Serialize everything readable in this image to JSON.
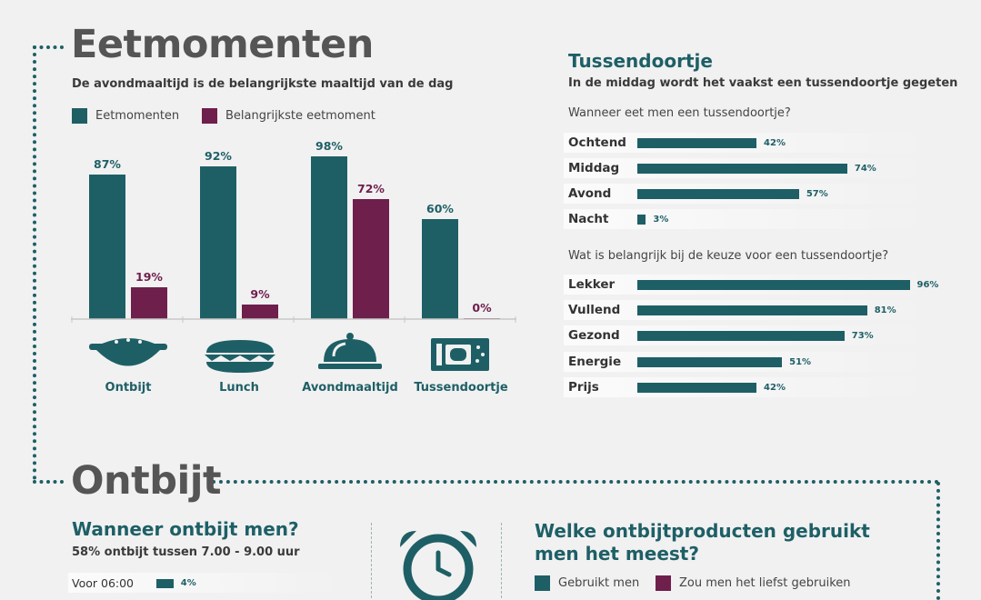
{
  "colors": {
    "teal": "#1e5f66",
    "maroon": "#6e1f4c",
    "dots": "#1e5f66"
  },
  "eetmomenten": {
    "title": "Eetmomenten",
    "subtitle": "De avondmaaltijd is de belangrijkste maaltijd van de dag",
    "legend": [
      "Eetmomenten",
      "Belangrijkste eetmoment"
    ]
  },
  "tussendoortje": {
    "title": "Tussendoortje",
    "subtitle": "In de middag wordt het vaakst een tussendoortje gegeten",
    "q1": "Wanneer eet men een tussendoortje?",
    "q2": "Wat is belangrijk bij de keuze voor een tussendoortje?"
  },
  "ontbijt": {
    "title": "Ontbijt",
    "when_title": "Wanneer ontbijt men?",
    "when_subtitle": "58% ontbijt tussen 7.00 - 9.00 uur",
    "products_title_1": "Welke ontbijtproducten gebruikt",
    "products_title_2": "men het meest?",
    "legend": [
      "Gebruikt men",
      "Zou men het liefst gebruiken"
    ]
  },
  "icons": [
    "bowl-icon",
    "sandwich-icon",
    "cloche-icon",
    "snack-bar-icon",
    "alarm-clock-icon"
  ],
  "chart_data": [
    {
      "type": "bar",
      "title": "Eetmomenten",
      "categories": [
        "Ontbijt",
        "Lunch",
        "Avondmaaltijd",
        "Tussendoortje"
      ],
      "series": [
        {
          "name": "Eetmomenten",
          "values": [
            87,
            92,
            98,
            60
          ]
        },
        {
          "name": "Belangrijkste eetmoment",
          "values": [
            19,
            9,
            72,
            0
          ]
        }
      ],
      "ylim": [
        0,
        100
      ],
      "unit": "%"
    },
    {
      "type": "bar",
      "orientation": "horizontal",
      "title": "Wanneer eet men een tussendoortje?",
      "categories": [
        "Ochtend",
        "Middag",
        "Avond",
        "Nacht"
      ],
      "values": [
        42,
        74,
        57,
        3
      ],
      "unit": "%"
    },
    {
      "type": "bar",
      "orientation": "horizontal",
      "title": "Wat is belangrijk bij de keuze voor een tussendoortje?",
      "categories": [
        "Lekker",
        "Vullend",
        "Gezond",
        "Energie",
        "Prijs"
      ],
      "values": [
        96,
        81,
        73,
        51,
        42
      ],
      "unit": "%"
    },
    {
      "type": "bar",
      "orientation": "horizontal",
      "title": "Wanneer ontbijt men?",
      "categories": [
        "Voor 06:00"
      ],
      "values": [
        4
      ],
      "unit": "%"
    }
  ]
}
